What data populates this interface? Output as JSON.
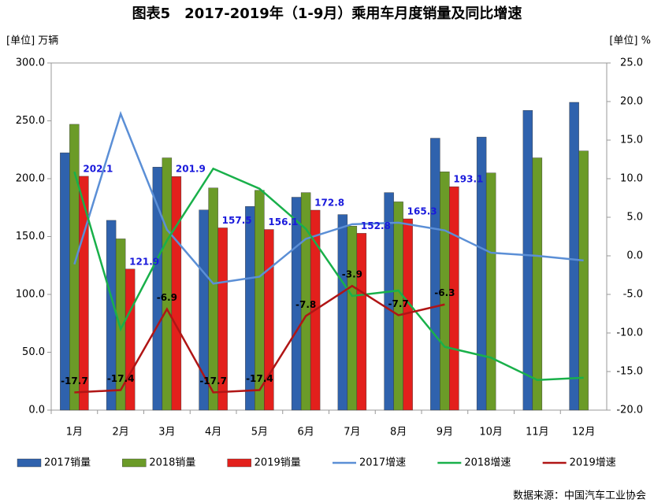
{
  "chart_data": {
    "type": "bar",
    "title": "图表5　2017-2019年（1-9月）乘用车月度销量及同比增速",
    "y_label": "[单位] 万辆",
    "y2_label": "[单位] %",
    "source": "数据来源：中国汽车工业协会",
    "categories": [
      "1月",
      "2月",
      "3月",
      "4月",
      "5月",
      "6月",
      "7月",
      "8月",
      "9月",
      "10月",
      "11月",
      "12月"
    ],
    "ylim": [
      0,
      300
    ],
    "yticks": [
      {
        "value": 0,
        "label": "0.0"
      },
      {
        "value": 50,
        "label": "50.0"
      },
      {
        "value": 100,
        "label": "100.0"
      },
      {
        "value": 150,
        "label": "150.0"
      },
      {
        "value": 200,
        "label": "200.0"
      },
      {
        "value": 250,
        "label": "250.0"
      },
      {
        "value": 300,
        "label": "300.0"
      }
    ],
    "y2lim": [
      -20,
      25
    ],
    "y2ticks": [
      {
        "value": -20,
        "label": "-20.0"
      },
      {
        "value": -15,
        "label": "-15.0"
      },
      {
        "value": -10,
        "label": "-10.0"
      },
      {
        "value": -5,
        "label": "-5.0"
      },
      {
        "value": 0,
        "label": "0.0"
      },
      {
        "value": 5,
        "label": "5.0"
      },
      {
        "value": 10,
        "label": "10.0"
      },
      {
        "value": 15,
        "label": "15.0"
      },
      {
        "value": 20,
        "label": "20.0"
      },
      {
        "value": 25,
        "label": "25.0"
      }
    ],
    "grid": false,
    "series": [
      {
        "name": "2017销量",
        "type": "bar",
        "color": "#2f62ad",
        "values": [
          222.4,
          164,
          210,
          173,
          176,
          184,
          169,
          188,
          235,
          236,
          259,
          266
        ]
      },
      {
        "name": "2018销量",
        "type": "bar",
        "color": "#6b9b28",
        "values": [
          247,
          148,
          218,
          192,
          190,
          188,
          159,
          180,
          206,
          205,
          218,
          224
        ]
      },
      {
        "name": "2019销量",
        "type": "bar",
        "color": "#e3201c",
        "show_values": true,
        "label_color": "#1a1adc",
        "values": [
          202.1,
          121.9,
          201.9,
          157.5,
          156.1,
          172.8,
          152.8,
          165.3,
          193.1,
          null,
          null,
          null
        ]
      },
      {
        "name": "2017增速",
        "type": "line",
        "axis": "y2",
        "color": "#5b8fd6",
        "values": [
          -1.1,
          18.4,
          3.4,
          -3.6,
          -2.7,
          2.2,
          4.1,
          4.3,
          3.3,
          0.4,
          0,
          -0.6
        ]
      },
      {
        "name": "2018增速",
        "type": "line",
        "axis": "y2",
        "color": "#19b04a",
        "values": [
          10.9,
          -9.5,
          2.0,
          11.3,
          8.7,
          3.5,
          -5.2,
          -4.5,
          -11.8,
          -13.2,
          -16.1,
          -15.8
        ]
      },
      {
        "name": "2019增速",
        "type": "line",
        "axis": "y2",
        "color": "#b01515",
        "show_values": true,
        "label_color": "#000000",
        "values": [
          -17.7,
          -17.4,
          -6.9,
          -17.7,
          -17.4,
          -7.8,
          -3.9,
          -7.7,
          -6.3,
          null,
          null,
          null
        ]
      }
    ]
  }
}
